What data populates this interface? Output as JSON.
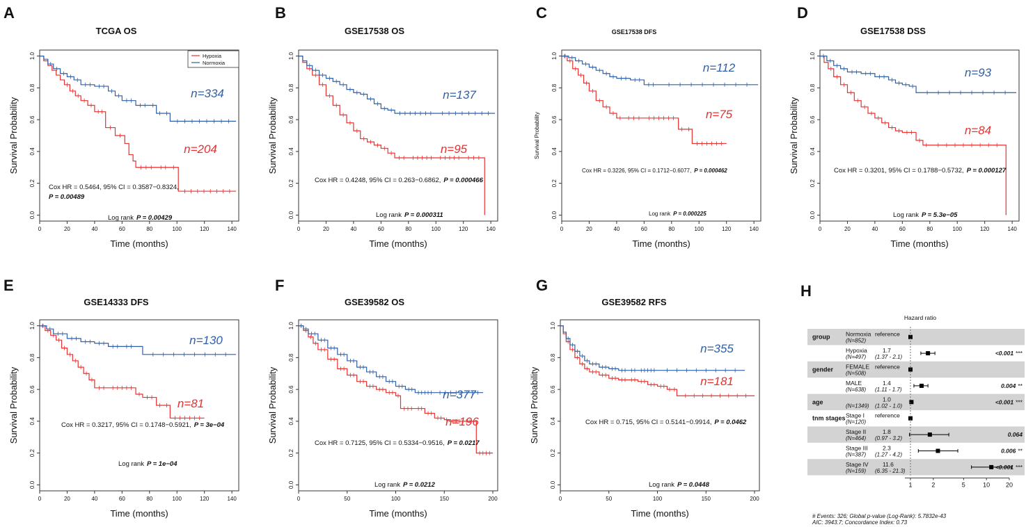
{
  "colors": {
    "hypoxia": "#e8302f",
    "normoxia": "#2f5fa6",
    "text": "#111111",
    "axis": "#333333",
    "band": "#d3d3d3"
  },
  "common": {
    "x_label": "Time (months)",
    "y_label": "Survival Probability",
    "y_ticks": [
      "0.0",
      "0.2",
      "0.4",
      "0.6",
      "0.8",
      "1.0"
    ],
    "legend": [
      "Hypoxia",
      "Normoxia"
    ]
  },
  "chart_data": [
    {
      "type": "line",
      "panel": "A",
      "title": "TCGA OS",
      "xlim": [
        0,
        145
      ],
      "ylim": [
        0,
        1
      ],
      "x_ticks": [
        "0",
        "20",
        "40",
        "60",
        "80",
        "100",
        "120",
        "140"
      ],
      "legend_placement": "top-right",
      "series": [
        {
          "name": "Hypoxia",
          "n_label": "n=204",
          "x": [
            0,
            3,
            6,
            9,
            12,
            15,
            18,
            22,
            26,
            30,
            35,
            40,
            48,
            55,
            62,
            65,
            68,
            70,
            85,
            95,
            100,
            101,
            143
          ],
          "y": [
            1,
            0.97,
            0.94,
            0.91,
            0.88,
            0.85,
            0.82,
            0.78,
            0.75,
            0.72,
            0.69,
            0.65,
            0.55,
            0.5,
            0.45,
            0.38,
            0.34,
            0.3,
            0.3,
            0.3,
            0.3,
            0.15,
            0.15
          ]
        },
        {
          "name": "Normoxia",
          "n_label": "n=334",
          "x": [
            0,
            3,
            6,
            10,
            15,
            20,
            25,
            30,
            40,
            50,
            55,
            60,
            70,
            80,
            85,
            90,
            95,
            143
          ],
          "y": [
            1,
            0.98,
            0.95,
            0.92,
            0.89,
            0.87,
            0.85,
            0.82,
            0.81,
            0.78,
            0.75,
            0.72,
            0.69,
            0.69,
            0.64,
            0.64,
            0.59,
            0.59
          ]
        }
      ],
      "cox_text": "Cox HR = 0.5464, 95% CI = 0.3587−0.8324,",
      "cox_p": "P = 0.00489",
      "logrank_label": "Log rank",
      "logrank_p": "P = 0.00429"
    },
    {
      "type": "line",
      "panel": "B",
      "title": "GSE17538 OS",
      "xlim": [
        0,
        145
      ],
      "ylim": [
        0,
        1
      ],
      "x_ticks": [
        "0",
        "20",
        "40",
        "60",
        "80",
        "100",
        "120",
        "140"
      ],
      "series": [
        {
          "name": "Hypoxia",
          "n_label": "n=95",
          "x": [
            0,
            3,
            6,
            10,
            15,
            20,
            25,
            30,
            35,
            40,
            45,
            50,
            55,
            60,
            65,
            70,
            80,
            100,
            120,
            135,
            135.5
          ],
          "y": [
            1,
            0.96,
            0.92,
            0.88,
            0.82,
            0.75,
            0.69,
            0.63,
            0.58,
            0.53,
            0.48,
            0.46,
            0.44,
            0.42,
            0.39,
            0.36,
            0.36,
            0.36,
            0.36,
            0.36,
            0.0
          ]
        },
        {
          "name": "Normoxia",
          "n_label": "n=137",
          "x": [
            0,
            3,
            6,
            10,
            15,
            20,
            25,
            30,
            35,
            40,
            45,
            50,
            55,
            60,
            65,
            70,
            100,
            143
          ],
          "y": [
            1,
            0.97,
            0.94,
            0.91,
            0.88,
            0.86,
            0.84,
            0.82,
            0.79,
            0.77,
            0.76,
            0.73,
            0.7,
            0.67,
            0.66,
            0.64,
            0.64,
            0.64
          ]
        }
      ],
      "cox_text": "Cox HR = 0.4248, 95% CI = 0.263−0.6862,",
      "cox_p": "P = 0.000466",
      "logrank_label": "Log rank",
      "logrank_p": "P = 0.000311"
    },
    {
      "type": "line",
      "panel": "C",
      "title": "GSE17538 DFS",
      "xlim": [
        0,
        145
      ],
      "ylim": [
        0,
        1
      ],
      "x_ticks": [
        "0",
        "20",
        "40",
        "60",
        "80",
        "100",
        "120",
        "140"
      ],
      "series": [
        {
          "name": "Hypoxia",
          "n_label": "n=75",
          "x": [
            0,
            4,
            8,
            12,
            16,
            20,
            25,
            30,
            35,
            40,
            45,
            60,
            85,
            90,
            95,
            120
          ],
          "y": [
            1,
            0.97,
            0.92,
            0.88,
            0.83,
            0.78,
            0.72,
            0.68,
            0.64,
            0.61,
            0.61,
            0.61,
            0.54,
            0.54,
            0.45,
            0.45
          ]
        },
        {
          "name": "Normoxia",
          "n_label": "n=112",
          "x": [
            0,
            5,
            10,
            15,
            20,
            25,
            30,
            35,
            40,
            50,
            60,
            70,
            143
          ],
          "y": [
            1,
            0.99,
            0.97,
            0.95,
            0.93,
            0.91,
            0.89,
            0.87,
            0.86,
            0.85,
            0.82,
            0.82,
            0.82
          ]
        }
      ],
      "cox_text": "Cox HR = 0.3226, 95% CI = 0.1712−0.6077,",
      "cox_p": "P = 0.000462",
      "logrank_label": "Log rank",
      "logrank_p": "P = 0.000225"
    },
    {
      "type": "line",
      "panel": "D",
      "title": "GSE17538 DSS",
      "xlim": [
        0,
        145
      ],
      "ylim": [
        0,
        1
      ],
      "x_ticks": [
        "0",
        "20",
        "40",
        "60",
        "80",
        "100",
        "120",
        "140"
      ],
      "series": [
        {
          "name": "Hypoxia",
          "n_label": "n=84",
          "x": [
            0,
            3,
            6,
            10,
            15,
            20,
            25,
            30,
            35,
            40,
            45,
            50,
            55,
            60,
            70,
            75,
            80,
            135,
            135.5
          ],
          "y": [
            1,
            0.96,
            0.92,
            0.87,
            0.82,
            0.77,
            0.72,
            0.68,
            0.64,
            0.61,
            0.58,
            0.55,
            0.53,
            0.52,
            0.47,
            0.44,
            0.44,
            0.44,
            0.0
          ]
        },
        {
          "name": "Normoxia",
          "n_label": "n=93",
          "x": [
            0,
            5,
            10,
            15,
            20,
            30,
            40,
            50,
            55,
            60,
            65,
            70,
            143
          ],
          "y": [
            1,
            0.97,
            0.94,
            0.92,
            0.9,
            0.89,
            0.87,
            0.85,
            0.83,
            0.82,
            0.81,
            0.77,
            0.77
          ]
        }
      ],
      "cox_text": "Cox HR = 0.3201, 95% CI = 0.1788−0.5732,",
      "cox_p": "P = 0.000127",
      "logrank_label": "Log rank",
      "logrank_p": "P = 5.3e−05"
    },
    {
      "type": "line",
      "panel": "E",
      "title": "GSE14333 DFS",
      "xlim": [
        0,
        145
      ],
      "ylim": [
        0,
        1
      ],
      "x_ticks": [
        "0",
        "20",
        "40",
        "60",
        "80",
        "100",
        "120",
        "140"
      ],
      "series": [
        {
          "name": "Hypoxia",
          "n_label": "n=81",
          "x": [
            0,
            4,
            8,
            12,
            16,
            20,
            24,
            28,
            32,
            36,
            40,
            50,
            70,
            75,
            85,
            90,
            95,
            120
          ],
          "y": [
            1,
            0.97,
            0.94,
            0.91,
            0.86,
            0.82,
            0.78,
            0.74,
            0.7,
            0.66,
            0.61,
            0.61,
            0.57,
            0.55,
            0.5,
            0.5,
            0.42,
            0.42
          ]
        },
        {
          "name": "Normoxia",
          "n_label": "n=130",
          "x": [
            0,
            5,
            10,
            20,
            30,
            40,
            50,
            60,
            70,
            72,
            75,
            143
          ],
          "y": [
            1,
            0.98,
            0.95,
            0.92,
            0.9,
            0.89,
            0.87,
            0.87,
            0.87,
            0.87,
            0.82,
            0.82
          ]
        }
      ],
      "cox_text": "Cox HR =  0.3217, 95% CI = 0.1748−0.5921,",
      "cox_p": "P = 3e−04",
      "logrank_label": "Log rank",
      "logrank_p": "P = 1e−04"
    },
    {
      "type": "line",
      "panel": "F",
      "title": "GSE39582 OS",
      "xlim": [
        0,
        205
      ],
      "ylim": [
        0,
        1
      ],
      "x_ticks": [
        "0",
        "50",
        "100",
        "150",
        "200"
      ],
      "series": [
        {
          "name": "Hypoxia",
          "n_label": "n=196",
          "x": [
            0,
            5,
            10,
            15,
            20,
            30,
            40,
            50,
            60,
            70,
            80,
            90,
            100,
            105,
            120,
            130,
            140,
            150,
            155,
            180,
            183,
            200
          ],
          "y": [
            1,
            0.97,
            0.93,
            0.89,
            0.85,
            0.79,
            0.73,
            0.69,
            0.65,
            0.62,
            0.6,
            0.58,
            0.56,
            0.48,
            0.48,
            0.45,
            0.42,
            0.41,
            0.4,
            0.4,
            0.2,
            0.2
          ]
        },
        {
          "name": "Normoxia",
          "n_label": "n=377",
          "x": [
            0,
            5,
            10,
            20,
            30,
            40,
            50,
            60,
            70,
            80,
            90,
            100,
            110,
            120,
            140,
            190
          ],
          "y": [
            1,
            0.98,
            0.95,
            0.91,
            0.86,
            0.82,
            0.78,
            0.74,
            0.71,
            0.68,
            0.65,
            0.62,
            0.6,
            0.58,
            0.58,
            0.58
          ]
        }
      ],
      "cox_text": "Cox HR = 0.7125, 95% CI = 0.5334−0.9516,",
      "cox_p": "P = 0.0217",
      "logrank_label": "Log rank",
      "logrank_p": "P = 0.0212"
    },
    {
      "type": "line",
      "panel": "G",
      "title": "GSE39582 RFS",
      "xlim": [
        0,
        205
      ],
      "ylim": [
        0,
        1
      ],
      "x_ticks": [
        "0",
        "50",
        "100",
        "150",
        "200"
      ],
      "series": [
        {
          "name": "Hypoxia",
          "n_label": "n=181",
          "x": [
            0,
            3,
            6,
            10,
            15,
            20,
            25,
            30,
            40,
            50,
            60,
            70,
            80,
            90,
            100,
            110,
            115,
            120,
            200
          ],
          "y": [
            1,
            0.95,
            0.9,
            0.85,
            0.8,
            0.76,
            0.73,
            0.71,
            0.69,
            0.67,
            0.66,
            0.66,
            0.65,
            0.63,
            0.62,
            0.6,
            0.6,
            0.56,
            0.56
          ]
        },
        {
          "name": "Normoxia",
          "n_label": "n=355",
          "x": [
            0,
            3,
            6,
            10,
            15,
            20,
            25,
            30,
            40,
            50,
            60,
            70,
            80,
            100,
            190
          ],
          "y": [
            1,
            0.96,
            0.92,
            0.88,
            0.84,
            0.81,
            0.78,
            0.76,
            0.74,
            0.73,
            0.72,
            0.72,
            0.72,
            0.72,
            0.72
          ]
        }
      ],
      "cox_text": "Cox HR = 0.715, 95% CI = 0.5141−0.9914,",
      "cox_p": "P = 0.0462",
      "logrank_label": "Log rank",
      "logrank_p": "P = 0.0448"
    }
  ],
  "forest": {
    "panel": "H",
    "type": "forest",
    "title": "Hazard ratio",
    "x_scale": "log",
    "x_ticks": [
      "1",
      "2",
      "5",
      "10",
      "20"
    ],
    "rows": [
      {
        "var": "group",
        "level": "Normoxia",
        "n": "(N=852)",
        "hr": "reference",
        "ci": "",
        "p": "",
        "stars": "",
        "shade": true,
        "est": 1,
        "lo": null,
        "hi": null
      },
      {
        "var": "",
        "level": "Hypoxia",
        "n": "(N=497)",
        "hr": "1.7",
        "ci": "(1.37 - 2.1)",
        "p": "<0.001",
        "stars": "***",
        "shade": false,
        "est": 1.7,
        "lo": 1.37,
        "hi": 2.1
      },
      {
        "var": "gender",
        "level": "FEMALE",
        "n": "(N=508)",
        "hr": "reference",
        "ci": "",
        "p": "",
        "stars": "",
        "shade": true,
        "est": 1,
        "lo": null,
        "hi": null
      },
      {
        "var": "",
        "level": "MALE",
        "n": "(N=638)",
        "hr": "1.4",
        "ci": "(1.11 - 1.7)",
        "p": "0.004",
        "stars": "**",
        "shade": false,
        "est": 1.4,
        "lo": 1.11,
        "hi": 1.7
      },
      {
        "var": "age",
        "level": "",
        "n": "(N=1349)",
        "hr": "1.0",
        "ci": "(1.02 - 1.0)",
        "p": "<0.001",
        "stars": "***",
        "shade": true,
        "est": 1.03,
        "lo": 1.02,
        "hi": 1.04
      },
      {
        "var": "tnm stages",
        "level": "Stage I",
        "n": "(N=120)",
        "hr": "reference",
        "ci": "",
        "p": "",
        "stars": "",
        "shade": false,
        "est": 1,
        "lo": null,
        "hi": null
      },
      {
        "var": "",
        "level": "Stage II",
        "n": "(N=464)",
        "hr": "1.8",
        "ci": "(0.97 - 3.2)",
        "p": "0.064",
        "stars": "",
        "shade": true,
        "est": 1.8,
        "lo": 0.97,
        "hi": 3.2
      },
      {
        "var": "",
        "level": "Stage III",
        "n": "(N=387)",
        "hr": "2.3",
        "ci": "(1.27 - 4.2)",
        "p": "0.006",
        "stars": "**",
        "shade": false,
        "est": 2.3,
        "lo": 1.27,
        "hi": 4.2
      },
      {
        "var": "",
        "level": "Stage IV",
        "n": "(N=159)",
        "hr": "11.6",
        "ci": "(6.35 - 21.3)",
        "p": "<0.001",
        "stars": "***",
        "shade": true,
        "est": 11.6,
        "lo": 6.35,
        "hi": 21.3
      }
    ],
    "footer_1": "# Events: 326; Global p-value (Log-Rank): 5.7832e-43",
    "footer_2": "AIC: 3943.7; Concordance Index: 0.73"
  }
}
